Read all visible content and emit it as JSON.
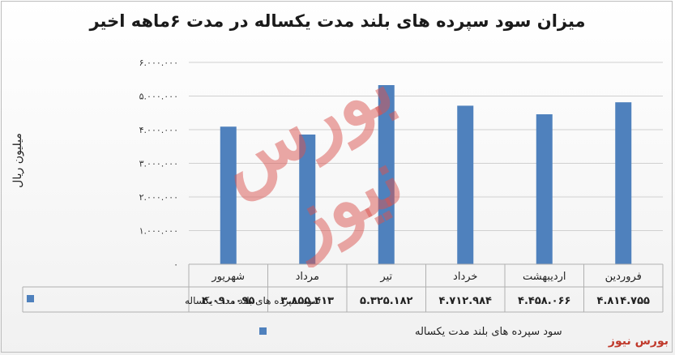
{
  "chart_data": {
    "type": "bar",
    "title": "میزان سود سپرده های بلند مدت یکساله در مدت ۶ماهه اخیر",
    "ylabel": "میلیون ریال",
    "ylim": [
      0,
      6000000
    ],
    "yticks": [
      0,
      1000000,
      2000000,
      3000000,
      4000000,
      5000000,
      6000000
    ],
    "ytick_labels": [
      "۰",
      "۱.۰۰۰.۰۰۰",
      "۲.۰۰۰.۰۰۰",
      "۳.۰۰۰.۰۰۰",
      "۴.۰۰۰.۰۰۰",
      "۵.۰۰۰.۰۰۰",
      "۶.۰۰۰.۰۰۰"
    ],
    "categories": [
      "فروردین",
      "اردیبهشت",
      "خرداد",
      "تیر",
      "مرداد",
      "شهریور"
    ],
    "series": [
      {
        "name": "سود سپرده های بلند مدت یکساله",
        "values": [
          4814755,
          4458066,
          4712984,
          5325182,
          3855413,
          4090095
        ],
        "value_labels": [
          "۴.۸۱۴.۷۵۵",
          "۴.۴۵۸.۰۶۶",
          "۴.۷۱۲.۹۸۴",
          "۵.۳۲۵.۱۸۲",
          "۳.۸۵۵.۴۱۳",
          "۴.۰۹۰.۰۹۵"
        ],
        "color": "#4f81bd"
      }
    ],
    "grid": true,
    "data_table": true,
    "legend": "bottom"
  },
  "watermark_text": "بورس نیوز",
  "source_label": "بورس نیوز"
}
